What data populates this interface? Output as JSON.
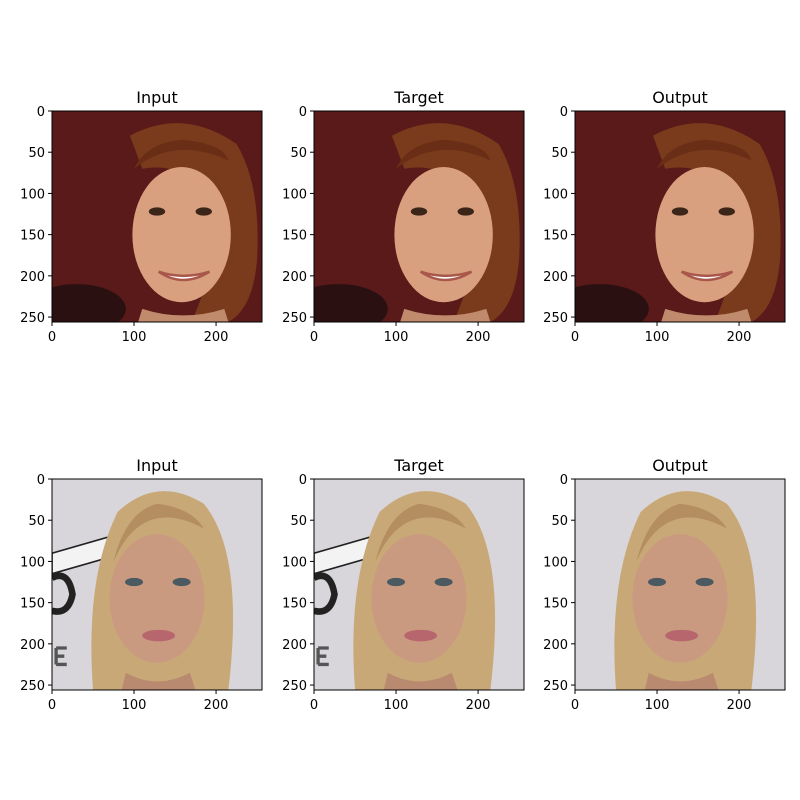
{
  "figure": {
    "rows": [
      {
        "panels": [
          {
            "title": "Input",
            "image": "portrait-woman-auburn-hair-smiling-maroon-background"
          },
          {
            "title": "Target",
            "image": "portrait-woman-auburn-hair-smiling-maroon-background"
          },
          {
            "title": "Output",
            "image": "portrait-woman-auburn-hair-smiling-maroon-background-smoothed"
          }
        ]
      },
      {
        "panels": [
          {
            "title": "Input",
            "image": "portrait-woman-blonde-hair-light-background-with-lettering"
          },
          {
            "title": "Target",
            "image": "portrait-woman-blonde-hair-light-background-with-lettering"
          },
          {
            "title": "Output",
            "image": "portrait-woman-blonde-hair-plain-background"
          }
        ]
      }
    ],
    "x_ticks": [
      "0",
      "100",
      "200"
    ],
    "y_ticks": [
      "0",
      "50",
      "100",
      "150",
      "200",
      "250"
    ],
    "axis_range": [
      0,
      256
    ]
  },
  "colors": {
    "maroon_bg": "#5a1a1a",
    "auburn_hair": "#7a3a1c",
    "skin_warm": "#d9a07f",
    "light_bg": "#d8d6da",
    "blonde_hair": "#c9a878",
    "skin_light": "#c99a80"
  }
}
